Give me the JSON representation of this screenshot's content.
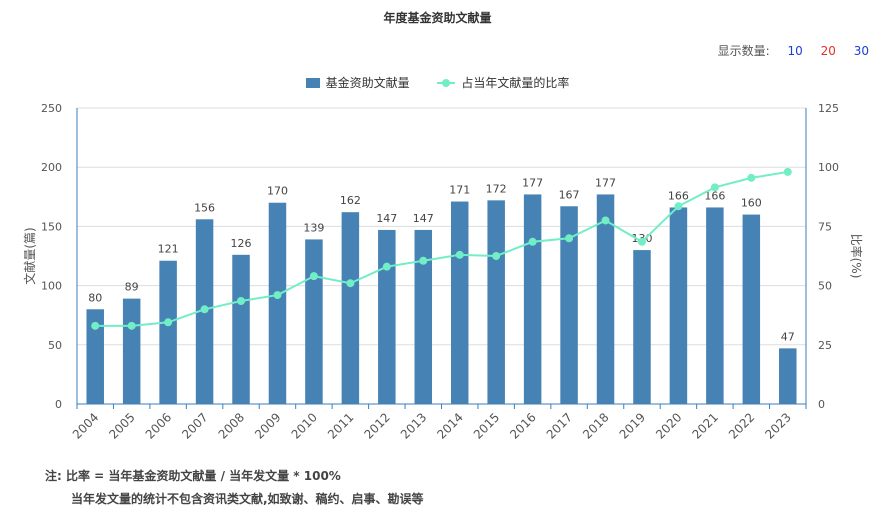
{
  "title": "年度基金资助文献量",
  "display_count": {
    "label": "显示数量:",
    "options": [
      {
        "label": "10",
        "color": "#1a3fd6"
      },
      {
        "label": "20",
        "color": "#e0302a"
      },
      {
        "label": "30",
        "color": "#1a3fd6"
      }
    ]
  },
  "colors": {
    "bar": "#4682b4",
    "line": "#72eec6",
    "axis": "#3a7fc0",
    "grid": "#dddddd"
  },
  "notes": {
    "line1": "注:  比率 = 当年基金资助文献量 / 当年发文量 * 100%",
    "line2": "当年发文量的统计不包含资讯类文献,如致谢、稿约、启事、勘误等"
  },
  "chart_data": {
    "type": "bar",
    "categories": [
      "2004",
      "2005",
      "2006",
      "2007",
      "2008",
      "2009",
      "2010",
      "2011",
      "2012",
      "2013",
      "2014",
      "2015",
      "2016",
      "2017",
      "2018",
      "2019",
      "2020",
      "2021",
      "2022",
      "2023"
    ],
    "series": [
      {
        "name": "基金资助文献量",
        "type": "bar",
        "axis": "left",
        "values": [
          80,
          89,
          121,
          156,
          126,
          170,
          139,
          162,
          147,
          147,
          171,
          172,
          177,
          167,
          177,
          130,
          166,
          166,
          160,
          47
        ]
      },
      {
        "name": "占当年文献量的比率",
        "type": "line",
        "axis": "right",
        "values": [
          33,
          33,
          34.5,
          40,
          43.5,
          46,
          54,
          51,
          58,
          60.5,
          63,
          62.5,
          68.5,
          70,
          77.5,
          68.5,
          83.5,
          91.5,
          95.5,
          98
        ]
      }
    ],
    "ylabel": "文献量(篇)",
    "ylabel_right": "比率(%)",
    "ylim": [
      0,
      250
    ],
    "ylim_right": [
      0,
      125
    ],
    "yticks": [
      0,
      50,
      100,
      150,
      200,
      250
    ],
    "yticks_right": [
      0,
      25,
      50,
      75,
      100,
      125
    ],
    "grid": true,
    "legend_position": "top-center"
  }
}
